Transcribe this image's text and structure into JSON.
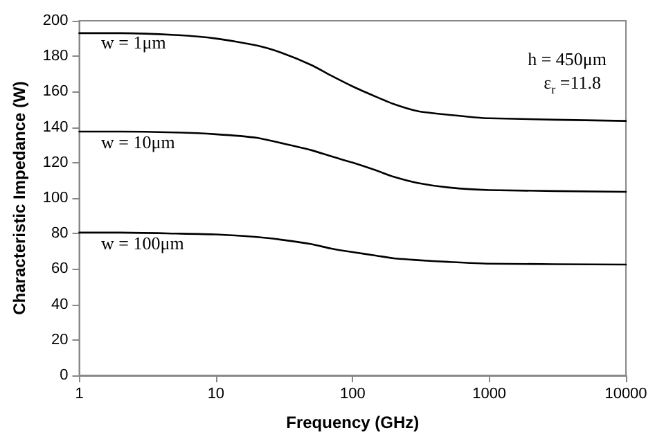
{
  "chart_data": {
    "type": "line",
    "xlabel": "Frequency (GHz)",
    "ylabel": "Characteristic Impedance (W)",
    "log": "x",
    "xlim": [
      1,
      10000
    ],
    "xticks": [
      1,
      10,
      100,
      1000,
      10000
    ],
    "ylim": [
      0,
      200
    ],
    "yticks": [
      0,
      20,
      40,
      60,
      80,
      100,
      120,
      140,
      160,
      180,
      200
    ],
    "grid": false,
    "marker": "none",
    "line_style": "solid",
    "x": [
      1,
      2,
      5,
      10,
      20,
      30,
      50,
      70,
      100,
      150,
      200,
      300,
      500,
      1000,
      10000
    ],
    "series": [
      {
        "color": "#000000",
        "values": [
          193,
          193,
          192,
          190,
          186,
          182,
          175,
          169,
          163,
          157,
          153,
          149,
          147,
          145,
          143.5
        ]
      },
      {
        "color": "#000000",
        "values": [
          137.5,
          137.5,
          137,
          136,
          134,
          131,
          127,
          123.5,
          120,
          115.5,
          112,
          108.5,
          106,
          104.5,
          103.5
        ]
      },
      {
        "color": "#000000",
        "values": [
          80.5,
          80.5,
          80,
          79.5,
          78,
          76.5,
          74,
          71.5,
          69.5,
          67.5,
          66,
          65,
          64,
          63,
          62.5
        ]
      }
    ],
    "annotations": [
      "w = 1μm",
      "w = 10μm",
      "w = 100μm",
      "h = 450μm",
      "ε$_{r}$ =11.8"
    ]
  }
}
